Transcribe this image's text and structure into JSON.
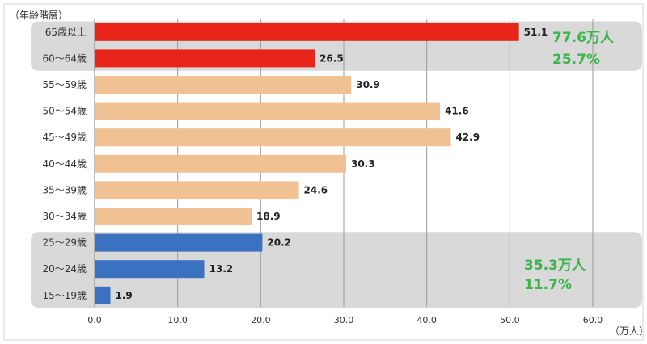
{
  "chart_data": {
    "type": "bar",
    "orientation": "horizontal",
    "y_axis_title": "（年齢階層）",
    "x_unit_label": "（万人）",
    "categories": [
      "65歳以上",
      "60～64歳",
      "55～59歳",
      "50～54歳",
      "45～49歳",
      "40～44歳",
      "35～39歳",
      "30～34歳",
      "25～29歳",
      "20～24歳",
      "15～19歳"
    ],
    "values": [
      51.1,
      26.5,
      30.9,
      41.6,
      42.9,
      30.3,
      24.6,
      18.9,
      20.2,
      13.2,
      1.9
    ],
    "value_labels": [
      "51.1",
      "26.5",
      "30.9",
      "41.6",
      "42.9",
      "30.3",
      "24.6",
      "18.9",
      "20.2",
      "13.2",
      "1.9"
    ],
    "bar_colors": [
      "#e8231a",
      "#e8231a",
      "#f0c193",
      "#f0c193",
      "#f0c193",
      "#f0c193",
      "#f0c193",
      "#f0c193",
      "#3a71c1",
      "#3a71c1",
      "#3a71c1"
    ],
    "xlim": [
      0,
      60
    ],
    "x_ticks": [
      "0.0",
      "10.0",
      "20.0",
      "30.0",
      "40.0",
      "50.0",
      "60.0"
    ],
    "grid": "vertical",
    "highlight_groups": [
      {
        "name": "senior",
        "categories": [
          "65歳以上",
          "60～64歳"
        ],
        "total": "77.6万人",
        "share": "25.7%"
      },
      {
        "name": "youth",
        "categories": [
          "25～29歳",
          "20～24歳",
          "15～19歳"
        ],
        "total": "35.3万人",
        "share": "11.7%"
      }
    ],
    "annotation_color": "#3cb54a",
    "highlight_background": "#d9d9d9"
  }
}
